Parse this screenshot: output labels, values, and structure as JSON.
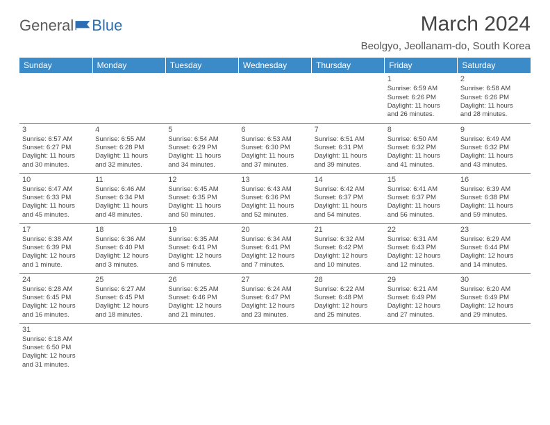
{
  "logo": {
    "general": "General",
    "blue": "Blue"
  },
  "title": "March 2024",
  "location": "Beolgyo, Jeollanam-do, South Korea",
  "header_bg": "#3b8bc9",
  "header_fg": "#ffffff",
  "border_color": "#3b8bc9",
  "text_color": "#444444",
  "weekdays": [
    "Sunday",
    "Monday",
    "Tuesday",
    "Wednesday",
    "Thursday",
    "Friday",
    "Saturday"
  ],
  "weeks": [
    [
      null,
      null,
      null,
      null,
      null,
      {
        "d": "1",
        "sr": "Sunrise: 6:59 AM",
        "ss": "Sunset: 6:26 PM",
        "dl1": "Daylight: 11 hours",
        "dl2": "and 26 minutes."
      },
      {
        "d": "2",
        "sr": "Sunrise: 6:58 AM",
        "ss": "Sunset: 6:26 PM",
        "dl1": "Daylight: 11 hours",
        "dl2": "and 28 minutes."
      }
    ],
    [
      {
        "d": "3",
        "sr": "Sunrise: 6:57 AM",
        "ss": "Sunset: 6:27 PM",
        "dl1": "Daylight: 11 hours",
        "dl2": "and 30 minutes."
      },
      {
        "d": "4",
        "sr": "Sunrise: 6:55 AM",
        "ss": "Sunset: 6:28 PM",
        "dl1": "Daylight: 11 hours",
        "dl2": "and 32 minutes."
      },
      {
        "d": "5",
        "sr": "Sunrise: 6:54 AM",
        "ss": "Sunset: 6:29 PM",
        "dl1": "Daylight: 11 hours",
        "dl2": "and 34 minutes."
      },
      {
        "d": "6",
        "sr": "Sunrise: 6:53 AM",
        "ss": "Sunset: 6:30 PM",
        "dl1": "Daylight: 11 hours",
        "dl2": "and 37 minutes."
      },
      {
        "d": "7",
        "sr": "Sunrise: 6:51 AM",
        "ss": "Sunset: 6:31 PM",
        "dl1": "Daylight: 11 hours",
        "dl2": "and 39 minutes."
      },
      {
        "d": "8",
        "sr": "Sunrise: 6:50 AM",
        "ss": "Sunset: 6:32 PM",
        "dl1": "Daylight: 11 hours",
        "dl2": "and 41 minutes."
      },
      {
        "d": "9",
        "sr": "Sunrise: 6:49 AM",
        "ss": "Sunset: 6:32 PM",
        "dl1": "Daylight: 11 hours",
        "dl2": "and 43 minutes."
      }
    ],
    [
      {
        "d": "10",
        "sr": "Sunrise: 6:47 AM",
        "ss": "Sunset: 6:33 PM",
        "dl1": "Daylight: 11 hours",
        "dl2": "and 45 minutes."
      },
      {
        "d": "11",
        "sr": "Sunrise: 6:46 AM",
        "ss": "Sunset: 6:34 PM",
        "dl1": "Daylight: 11 hours",
        "dl2": "and 48 minutes."
      },
      {
        "d": "12",
        "sr": "Sunrise: 6:45 AM",
        "ss": "Sunset: 6:35 PM",
        "dl1": "Daylight: 11 hours",
        "dl2": "and 50 minutes."
      },
      {
        "d": "13",
        "sr": "Sunrise: 6:43 AM",
        "ss": "Sunset: 6:36 PM",
        "dl1": "Daylight: 11 hours",
        "dl2": "and 52 minutes."
      },
      {
        "d": "14",
        "sr": "Sunrise: 6:42 AM",
        "ss": "Sunset: 6:37 PM",
        "dl1": "Daylight: 11 hours",
        "dl2": "and 54 minutes."
      },
      {
        "d": "15",
        "sr": "Sunrise: 6:41 AM",
        "ss": "Sunset: 6:37 PM",
        "dl1": "Daylight: 11 hours",
        "dl2": "and 56 minutes."
      },
      {
        "d": "16",
        "sr": "Sunrise: 6:39 AM",
        "ss": "Sunset: 6:38 PM",
        "dl1": "Daylight: 11 hours",
        "dl2": "and 59 minutes."
      }
    ],
    [
      {
        "d": "17",
        "sr": "Sunrise: 6:38 AM",
        "ss": "Sunset: 6:39 PM",
        "dl1": "Daylight: 12 hours",
        "dl2": "and 1 minute."
      },
      {
        "d": "18",
        "sr": "Sunrise: 6:36 AM",
        "ss": "Sunset: 6:40 PM",
        "dl1": "Daylight: 12 hours",
        "dl2": "and 3 minutes."
      },
      {
        "d": "19",
        "sr": "Sunrise: 6:35 AM",
        "ss": "Sunset: 6:41 PM",
        "dl1": "Daylight: 12 hours",
        "dl2": "and 5 minutes."
      },
      {
        "d": "20",
        "sr": "Sunrise: 6:34 AM",
        "ss": "Sunset: 6:41 PM",
        "dl1": "Daylight: 12 hours",
        "dl2": "and 7 minutes."
      },
      {
        "d": "21",
        "sr": "Sunrise: 6:32 AM",
        "ss": "Sunset: 6:42 PM",
        "dl1": "Daylight: 12 hours",
        "dl2": "and 10 minutes."
      },
      {
        "d": "22",
        "sr": "Sunrise: 6:31 AM",
        "ss": "Sunset: 6:43 PM",
        "dl1": "Daylight: 12 hours",
        "dl2": "and 12 minutes."
      },
      {
        "d": "23",
        "sr": "Sunrise: 6:29 AM",
        "ss": "Sunset: 6:44 PM",
        "dl1": "Daylight: 12 hours",
        "dl2": "and 14 minutes."
      }
    ],
    [
      {
        "d": "24",
        "sr": "Sunrise: 6:28 AM",
        "ss": "Sunset: 6:45 PM",
        "dl1": "Daylight: 12 hours",
        "dl2": "and 16 minutes."
      },
      {
        "d": "25",
        "sr": "Sunrise: 6:27 AM",
        "ss": "Sunset: 6:45 PM",
        "dl1": "Daylight: 12 hours",
        "dl2": "and 18 minutes."
      },
      {
        "d": "26",
        "sr": "Sunrise: 6:25 AM",
        "ss": "Sunset: 6:46 PM",
        "dl1": "Daylight: 12 hours",
        "dl2": "and 21 minutes."
      },
      {
        "d": "27",
        "sr": "Sunrise: 6:24 AM",
        "ss": "Sunset: 6:47 PM",
        "dl1": "Daylight: 12 hours",
        "dl2": "and 23 minutes."
      },
      {
        "d": "28",
        "sr": "Sunrise: 6:22 AM",
        "ss": "Sunset: 6:48 PM",
        "dl1": "Daylight: 12 hours",
        "dl2": "and 25 minutes."
      },
      {
        "d": "29",
        "sr": "Sunrise: 6:21 AM",
        "ss": "Sunset: 6:49 PM",
        "dl1": "Daylight: 12 hours",
        "dl2": "and 27 minutes."
      },
      {
        "d": "30",
        "sr": "Sunrise: 6:20 AM",
        "ss": "Sunset: 6:49 PM",
        "dl1": "Daylight: 12 hours",
        "dl2": "and 29 minutes."
      }
    ],
    [
      {
        "d": "31",
        "sr": "Sunrise: 6:18 AM",
        "ss": "Sunset: 6:50 PM",
        "dl1": "Daylight: 12 hours",
        "dl2": "and 31 minutes."
      },
      null,
      null,
      null,
      null,
      null,
      null
    ]
  ]
}
